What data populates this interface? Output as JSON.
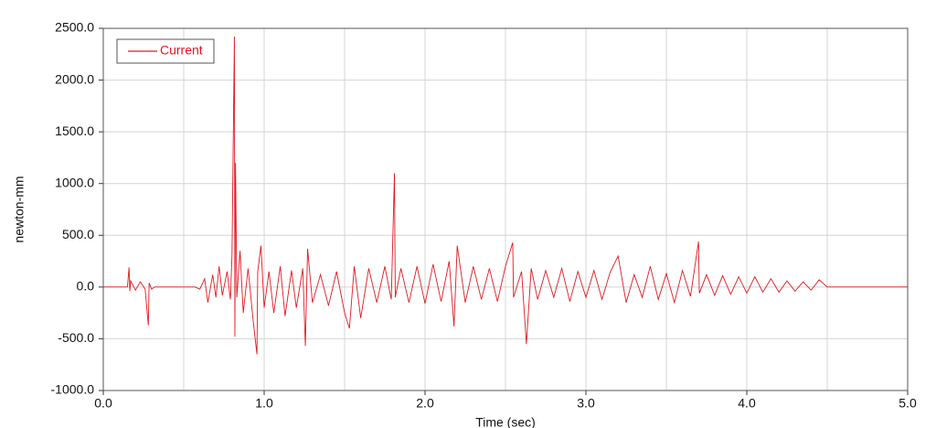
{
  "chart_data": {
    "type": "line",
    "x_label": "Time (sec)",
    "y_label": "newton-mm",
    "xlim": [
      0,
      5
    ],
    "ylim": [
      -1000,
      2500
    ],
    "xticks": [
      {
        "value": 0,
        "label": "0.0"
      },
      {
        "value": 1,
        "label": "1.0"
      },
      {
        "value": 2,
        "label": "2.0"
      },
      {
        "value": 3,
        "label": "3.0"
      },
      {
        "value": 4,
        "label": "4.0"
      },
      {
        "value": 5,
        "label": "5.0"
      }
    ],
    "x_minor_grid": [
      0.5,
      1.5,
      2.5,
      3.5,
      4.5
    ],
    "yticks": [
      {
        "value": -1000,
        "label": "-1000.0"
      },
      {
        "value": -500,
        "label": "-500.0"
      },
      {
        "value": 0,
        "label": "0.0"
      },
      {
        "value": 500,
        "label": "500.0"
      },
      {
        "value": 1000,
        "label": "1000.0"
      },
      {
        "value": 1500,
        "label": "1500.0"
      },
      {
        "value": 2000,
        "label": "2000.0"
      },
      {
        "value": 2500,
        "label": "2500.0"
      }
    ],
    "grid": true,
    "legend": "upper left",
    "x": [
      0,
      0.15,
      0.16,
      0.165,
      0.17,
      0.2,
      0.23,
      0.26,
      0.28,
      0.285,
      0.3,
      0.32,
      0.57,
      0.6,
      0.63,
      0.65,
      0.68,
      0.7,
      0.72,
      0.74,
      0.77,
      0.79,
      0.8,
      0.815,
      0.818,
      0.822,
      0.83,
      0.85,
      0.87,
      0.9,
      0.93,
      0.955,
      0.96,
      0.98,
      1.0,
      1.03,
      1.06,
      1.1,
      1.13,
      1.17,
      1.2,
      1.24,
      1.256,
      1.27,
      1.3,
      1.35,
      1.4,
      1.45,
      1.5,
      1.53,
      1.56,
      1.6,
      1.65,
      1.7,
      1.75,
      1.79,
      1.81,
      1.815,
      1.85,
      1.9,
      1.95,
      2.0,
      2.05,
      2.1,
      2.15,
      2.18,
      2.2,
      2.25,
      2.3,
      2.35,
      2.4,
      2.45,
      2.5,
      2.545,
      2.55,
      2.6,
      2.63,
      2.66,
      2.7,
      2.75,
      2.8,
      2.85,
      2.9,
      2.95,
      3.0,
      3.05,
      3.1,
      3.15,
      3.2,
      3.25,
      3.3,
      3.35,
      3.4,
      3.45,
      3.5,
      3.55,
      3.6,
      3.65,
      3.7,
      3.705,
      3.75,
      3.8,
      3.85,
      3.9,
      3.95,
      4.0,
      4.05,
      4.1,
      4.15,
      4.2,
      4.25,
      4.3,
      4.35,
      4.4,
      4.45,
      4.5,
      5.0
    ],
    "series": [
      {
        "name": "Current",
        "color": "#e0191e",
        "values": [
          0,
          0,
          190,
          -40,
          60,
          -30,
          50,
          -20,
          -370,
          40,
          -20,
          0,
          0,
          -20,
          80,
          -150,
          120,
          -100,
          200,
          -80,
          150,
          -120,
          300,
          2420,
          -480,
          1200,
          -100,
          350,
          -250,
          180,
          -300,
          -650,
          150,
          400,
          -200,
          150,
          -250,
          200,
          -280,
          160,
          -200,
          180,
          -570,
          370,
          -150,
          120,
          -180,
          150,
          -250,
          -400,
          200,
          -300,
          180,
          -150,
          200,
          -120,
          1100,
          -100,
          180,
          -150,
          200,
          -160,
          220,
          -140,
          250,
          -380,
          400,
          -150,
          200,
          -120,
          180,
          -140,
          200,
          430,
          -100,
          150,
          -550,
          180,
          -120,
          160,
          -100,
          180,
          -140,
          150,
          -100,
          160,
          -120,
          140,
          300,
          -150,
          120,
          -100,
          200,
          -120,
          130,
          -150,
          160,
          -90,
          440,
          -60,
          120,
          -80,
          110,
          -70,
          100,
          -60,
          100,
          -50,
          80,
          -50,
          60,
          -40,
          50,
          -30,
          70,
          0,
          0
        ]
      }
    ]
  }
}
